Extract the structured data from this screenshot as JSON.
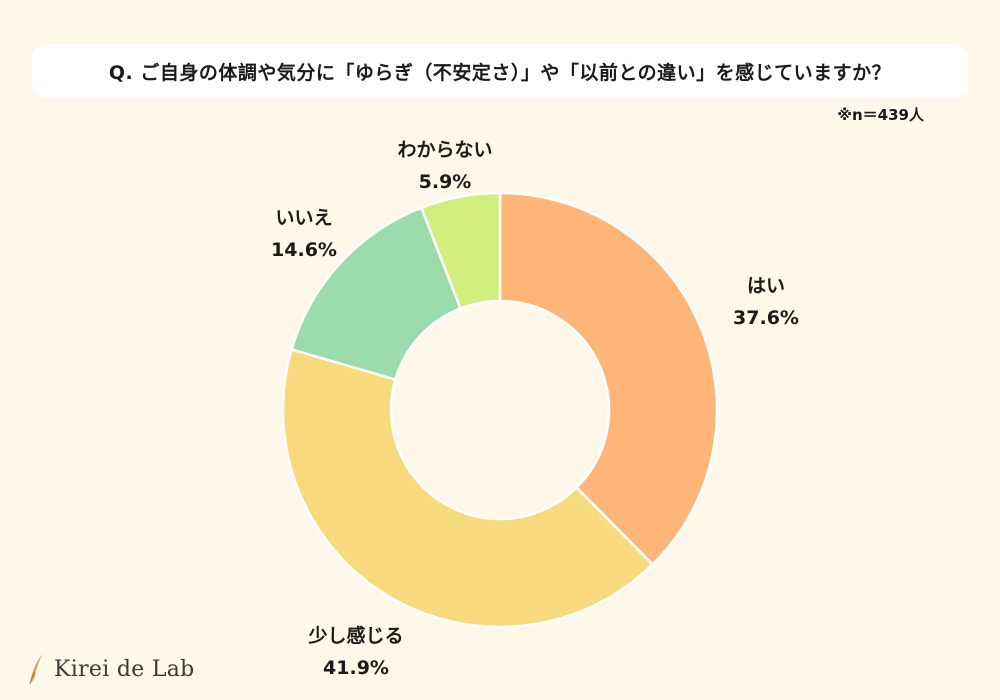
{
  "header": {
    "question": "Q. ご自身の体調や気分に「ゆらぎ（不安定さ）」や「以前との違い」を感じていますか？",
    "sample_note": "※n＝439人"
  },
  "brand": {
    "logo_text": "Kirei de Lab",
    "logo_icon": "feather-icon"
  },
  "chart_data": {
    "type": "pie",
    "style": "donut",
    "title": "Q. ご自身の体調や気分に「ゆらぎ（不安定さ）」や「以前との違い」を感じていますか？",
    "sample_size": "※n＝439人",
    "labels": [
      "はい",
      "少し感じる",
      "いいえ",
      "わからない"
    ],
    "values": [
      37.6,
      41.9,
      14.6,
      5.9
    ],
    "value_labels": [
      "37.6%",
      "41.9%",
      "14.6%",
      "5.9%"
    ],
    "colors": [
      "#ffb578",
      "#f7da7e",
      "#9bdcad",
      "#d2ee7e"
    ],
    "start": "12 o'clock",
    "direction": "clockwise",
    "legend": "none"
  }
}
